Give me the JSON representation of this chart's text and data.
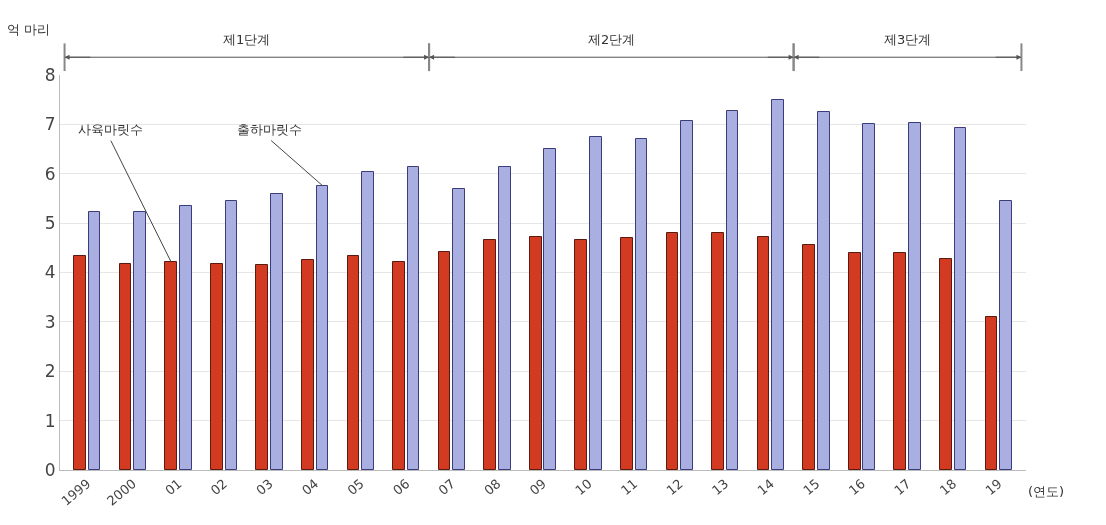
{
  "chart_data": {
    "type": "bar",
    "ylabel": "억 마리",
    "xlabel": "(연도)",
    "categories": [
      "1999",
      "2000",
      "01",
      "02",
      "03",
      "04",
      "05",
      "06",
      "07",
      "08",
      "09",
      "10",
      "11",
      "12",
      "13",
      "14",
      "15",
      "16",
      "17",
      "18",
      "19"
    ],
    "series": [
      {
        "name": "사육마릿수",
        "color": "#d23a22",
        "values": [
          4.34,
          4.18,
          4.21,
          4.18,
          4.15,
          4.25,
          4.34,
          4.21,
          4.41,
          4.65,
          4.72,
          4.65,
          4.69,
          4.79,
          4.79,
          4.72,
          4.56,
          4.4,
          4.4,
          4.28,
          3.1
        ]
      },
      {
        "name": "출하마릿수",
        "color": "#a9afe0",
        "values": [
          5.22,
          5.22,
          5.34,
          5.44,
          5.59,
          5.76,
          6.04,
          6.13,
          5.69,
          6.13,
          6.5,
          6.74,
          6.71,
          7.06,
          7.28,
          7.5,
          7.25,
          7.0,
          7.03,
          6.93,
          5.45
        ]
      }
    ],
    "annotations": [
      "제1단계",
      "제2단계",
      "제3단계"
    ],
    "ylim": [
      0,
      8
    ],
    "yticks": [
      0,
      1,
      2,
      3,
      4,
      5,
      6,
      7,
      8
    ],
    "grid": "y",
    "legend": false
  }
}
